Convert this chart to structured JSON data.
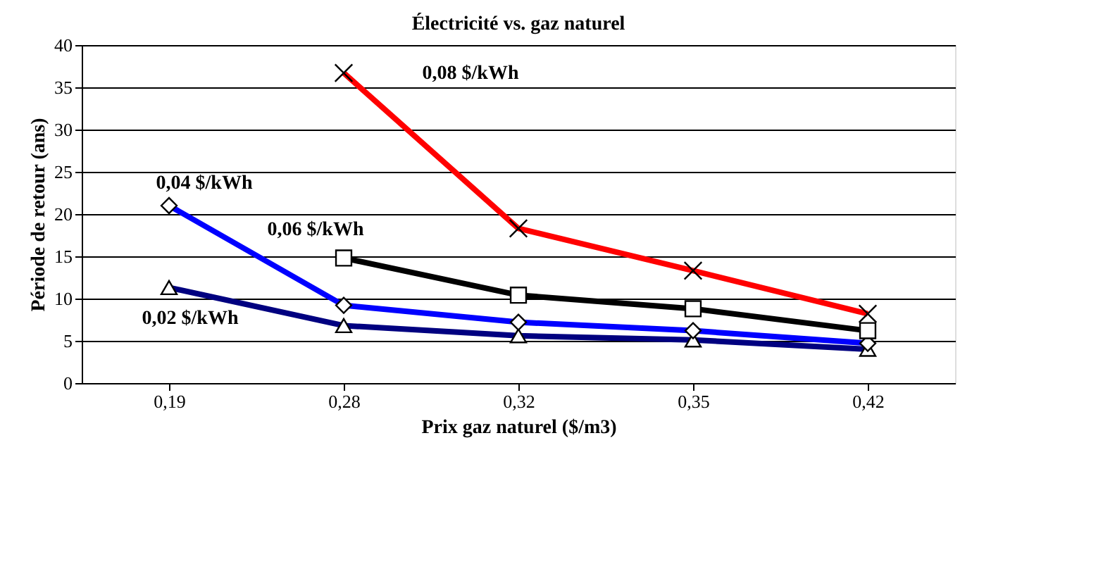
{
  "chart_data": {
    "type": "line",
    "title": "Électricité vs. gaz naturel",
    "xlabel": "Prix gaz naturel ($/m3)",
    "ylabel": "Période de retour (ans)",
    "categories": [
      "0,19",
      "0,28",
      "0,32",
      "0,35",
      "0,42"
    ],
    "ylim": [
      0,
      40
    ],
    "yticks": [
      0,
      5,
      10,
      15,
      20,
      25,
      30,
      35,
      40
    ],
    "grid": "y",
    "series": [
      {
        "name": "0,02 $/kWh",
        "color": "#000080",
        "marker": "triangle",
        "values": [
          11.3,
          6.8,
          5.6,
          5.1,
          4.0
        ]
      },
      {
        "name": "0,04 $/kWh",
        "color": "#0000ff",
        "marker": "diamond",
        "values": [
          21.0,
          9.2,
          7.2,
          6.2,
          4.7
        ]
      },
      {
        "name": "0,06 $/kWh",
        "color": "#000000",
        "marker": "square",
        "values": [
          null,
          14.8,
          10.4,
          8.8,
          6.2
        ]
      },
      {
        "name": "0,08 $/kWh",
        "color": "#ff0000",
        "marker": "cross",
        "values": [
          null,
          36.7,
          18.3,
          13.3,
          8.2
        ]
      }
    ]
  }
}
